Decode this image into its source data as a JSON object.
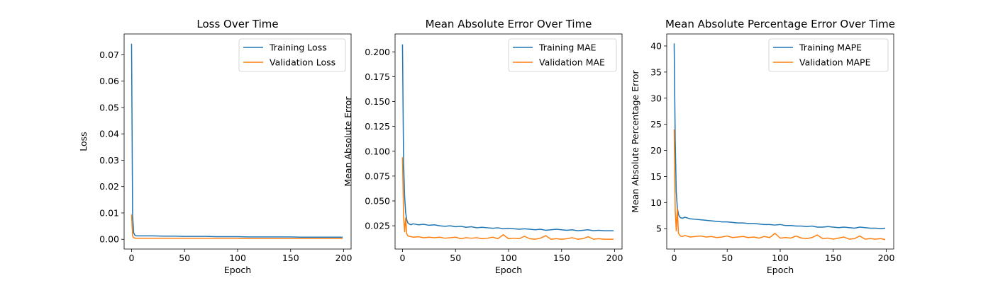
{
  "chart_data": [
    {
      "type": "line",
      "title": "Loss Over Time",
      "xlabel": "Epoch",
      "ylabel": "Loss",
      "xlim": [
        -7,
        207
      ],
      "ylim": [
        -0.0037,
        0.0779
      ],
      "xticks": [
        0,
        50,
        100,
        150,
        200
      ],
      "xtick_labels": [
        "0",
        "50",
        "100",
        "150",
        "200"
      ],
      "yticks": [
        0.0,
        0.01,
        0.02,
        0.03,
        0.04,
        0.05,
        0.06,
        0.07
      ],
      "ytick_labels": [
        "0.00",
        "0.01",
        "0.02",
        "0.03",
        "0.04",
        "0.05",
        "0.06",
        "0.07"
      ],
      "grid": false,
      "legend": "upper right",
      "series": [
        {
          "name": "Training Loss",
          "color": "#1f77b4",
          "x": [
            0,
            1,
            2,
            3,
            4,
            5,
            10,
            20,
            30,
            40,
            50,
            60,
            70,
            80,
            90,
            100,
            110,
            120,
            130,
            140,
            150,
            160,
            170,
            180,
            190,
            199
          ],
          "y": [
            0.0742,
            0.009,
            0.0025,
            0.0016,
            0.0014,
            0.0013,
            0.0013,
            0.0013,
            0.0012,
            0.0012,
            0.0011,
            0.0011,
            0.0011,
            0.001,
            0.001,
            0.001,
            0.0009,
            0.0009,
            0.0009,
            0.0009,
            0.0009,
            0.0008,
            0.0008,
            0.0008,
            0.0008,
            0.0008
          ]
        },
        {
          "name": "Validation Loss",
          "color": "#ff7f0e",
          "x": [
            0,
            1,
            2,
            3,
            4,
            5,
            10,
            20,
            30,
            40,
            50,
            60,
            70,
            80,
            90,
            100,
            110,
            120,
            130,
            140,
            150,
            160,
            170,
            180,
            190,
            199
          ],
          "y": [
            0.0094,
            0.0012,
            0.0006,
            0.0005,
            0.0004,
            0.0004,
            0.0004,
            0.0004,
            0.0004,
            0.0004,
            0.0004,
            0.0004,
            0.0004,
            0.0004,
            0.0004,
            0.0004,
            0.0003,
            0.0003,
            0.0003,
            0.0003,
            0.0003,
            0.0003,
            0.0003,
            0.0003,
            0.0003,
            0.0003
          ]
        }
      ]
    },
    {
      "type": "line",
      "title": "Mean Absolute Error Over Time",
      "xlabel": "Epoch",
      "ylabel": "Mean Absolute Error",
      "xlim": [
        -7,
        207
      ],
      "ylim": [
        0.0016,
        0.218
      ],
      "xticks": [
        0,
        50,
        100,
        150,
        200
      ],
      "xtick_labels": [
        "0",
        "50",
        "100",
        "150",
        "200"
      ],
      "yticks": [
        0.025,
        0.05,
        0.075,
        0.1,
        0.125,
        0.15,
        0.175,
        0.2
      ],
      "ytick_labels": [
        "0.025",
        "0.050",
        "0.075",
        "0.100",
        "0.125",
        "0.150",
        "0.175",
        "0.200"
      ],
      "grid": false,
      "legend": "upper right",
      "series": [
        {
          "name": "Training MAE",
          "color": "#1f77b4",
          "x": [
            0,
            1,
            2,
            3,
            4,
            5,
            6,
            8,
            10,
            15,
            20,
            25,
            30,
            35,
            40,
            45,
            50,
            55,
            60,
            65,
            70,
            75,
            80,
            85,
            90,
            95,
            100,
            105,
            110,
            115,
            120,
            125,
            130,
            135,
            140,
            145,
            150,
            155,
            160,
            165,
            170,
            175,
            180,
            185,
            190,
            195,
            199
          ],
          "y": [
            0.2075,
            0.09,
            0.055,
            0.038,
            0.031,
            0.028,
            0.027,
            0.026,
            0.027,
            0.026,
            0.0265,
            0.0255,
            0.026,
            0.025,
            0.0245,
            0.025,
            0.024,
            0.0245,
            0.0235,
            0.024,
            0.023,
            0.0235,
            0.023,
            0.0225,
            0.023,
            0.022,
            0.0225,
            0.022,
            0.0215,
            0.022,
            0.0215,
            0.021,
            0.0215,
            0.0205,
            0.021,
            0.0215,
            0.021,
            0.0205,
            0.021,
            0.02,
            0.0205,
            0.021,
            0.02,
            0.0205,
            0.02,
            0.02,
            0.02
          ]
        },
        {
          "name": "Validation MAE",
          "color": "#ff7f0e",
          "x": [
            0,
            1,
            2,
            3,
            4,
            5,
            6,
            8,
            10,
            15,
            20,
            25,
            30,
            35,
            40,
            45,
            50,
            55,
            60,
            65,
            70,
            75,
            80,
            85,
            90,
            95,
            100,
            105,
            110,
            115,
            120,
            125,
            130,
            135,
            140,
            145,
            150,
            155,
            160,
            165,
            170,
            175,
            180,
            185,
            190,
            195,
            199
          ],
          "y": [
            0.094,
            0.035,
            0.019,
            0.033,
            0.017,
            0.015,
            0.0145,
            0.014,
            0.0135,
            0.014,
            0.013,
            0.0135,
            0.013,
            0.0135,
            0.0125,
            0.013,
            0.0135,
            0.012,
            0.013,
            0.0125,
            0.013,
            0.012,
            0.0125,
            0.0135,
            0.012,
            0.016,
            0.012,
            0.0125,
            0.012,
            0.0145,
            0.012,
            0.0115,
            0.0125,
            0.015,
            0.0115,
            0.012,
            0.0115,
            0.012,
            0.013,
            0.0115,
            0.012,
            0.014,
            0.0115,
            0.012,
            0.0115,
            0.0115,
            0.0115
          ]
        }
      ]
    },
    {
      "type": "line",
      "title": "Mean Absolute Percentage Error Over Time",
      "xlabel": "Epoch",
      "ylabel": "Mean Absolute Percentage Error",
      "xlim": [
        -7,
        207
      ],
      "ylim": [
        1.1,
        42.3
      ],
      "xticks": [
        0,
        50,
        100,
        150,
        200
      ],
      "xtick_labels": [
        "0",
        "50",
        "100",
        "150",
        "200"
      ],
      "yticks": [
        5,
        10,
        15,
        20,
        25,
        30,
        35,
        40
      ],
      "ytick_labels": [
        "5",
        "10",
        "15",
        "20",
        "25",
        "30",
        "35",
        "40"
      ],
      "grid": false,
      "legend": "upper right",
      "series": [
        {
          "name": "Training MAPE",
          "color": "#1f77b4",
          "x": [
            0,
            1,
            2,
            3,
            4,
            5,
            6,
            8,
            10,
            15,
            20,
            25,
            30,
            35,
            40,
            45,
            50,
            55,
            60,
            65,
            70,
            75,
            80,
            85,
            90,
            95,
            100,
            105,
            110,
            115,
            120,
            125,
            130,
            135,
            140,
            145,
            150,
            155,
            160,
            165,
            170,
            175,
            180,
            185,
            190,
            195,
            199
          ],
          "y": [
            40.5,
            22.0,
            12.0,
            9.0,
            7.8,
            7.3,
            7.1,
            7.0,
            7.2,
            6.9,
            6.8,
            6.7,
            6.6,
            6.5,
            6.4,
            6.3,
            6.3,
            6.2,
            6.1,
            6.1,
            6.0,
            6.0,
            5.9,
            5.8,
            5.8,
            5.7,
            5.8,
            5.6,
            5.6,
            5.5,
            5.5,
            5.4,
            5.5,
            5.3,
            5.3,
            5.4,
            5.3,
            5.2,
            5.3,
            5.2,
            5.1,
            5.3,
            5.2,
            5.1,
            5.1,
            5.0,
            5.1
          ]
        },
        {
          "name": "Validation MAPE",
          "color": "#ff7f0e",
          "x": [
            0,
            1,
            2,
            3,
            4,
            5,
            6,
            8,
            10,
            15,
            20,
            25,
            30,
            35,
            40,
            45,
            50,
            55,
            60,
            65,
            70,
            75,
            80,
            85,
            90,
            95,
            100,
            105,
            110,
            115,
            120,
            125,
            130,
            135,
            140,
            145,
            150,
            155,
            160,
            165,
            170,
            175,
            180,
            185,
            190,
            195,
            199
          ],
          "y": [
            24.0,
            8.5,
            4.6,
            8.8,
            4.2,
            3.8,
            3.6,
            3.5,
            3.7,
            3.4,
            3.5,
            3.6,
            3.4,
            3.5,
            3.3,
            3.4,
            3.6,
            3.3,
            3.4,
            3.5,
            3.3,
            3.4,
            3.2,
            3.5,
            3.3,
            4.1,
            3.2,
            3.3,
            3.2,
            3.6,
            3.2,
            3.1,
            3.3,
            3.8,
            3.1,
            3.2,
            3.0,
            3.2,
            3.4,
            3.0,
            3.1,
            3.6,
            3.0,
            3.1,
            3.0,
            3.1,
            2.9
          ]
        }
      ]
    }
  ]
}
